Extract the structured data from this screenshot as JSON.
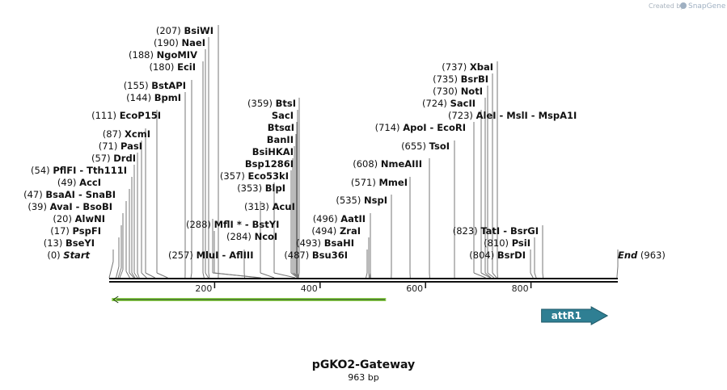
{
  "credit": {
    "prefix": "Created by",
    "brand": "SnapGene"
  },
  "title": "pGKO2-Gateway",
  "length_label": "963 bp",
  "end_position": "(963)",
  "scale": {
    "ticks": [
      {
        "label": "200",
        "bp": 200
      },
      {
        "label": "400",
        "bp": 400
      },
      {
        "label": "600",
        "bp": 600
      },
      {
        "label": "800",
        "bp": 800
      }
    ]
  },
  "sites": [
    {
      "name": "Start",
      "pos": "(0)",
      "bp": 0,
      "italic": true
    },
    {
      "name": "BseYI",
      "pos": "(13)",
      "bp": 13
    },
    {
      "name": "PspFI",
      "pos": "(17)",
      "bp": 17
    },
    {
      "name": "AlwNI",
      "pos": "(20)",
      "bp": 20
    },
    {
      "name": "AvaI  -  BsoBI",
      "pos": "(39)",
      "bp": 39
    },
    {
      "name": "BsaAI  -  SnaBI",
      "pos": "(47)",
      "bp": 47
    },
    {
      "name": "AccI",
      "pos": "(49)",
      "bp": 49
    },
    {
      "name": "PflFI  -  Tth111I",
      "pos": "(54)",
      "bp": 54
    },
    {
      "name": "DrdI",
      "pos": "(57)",
      "bp": 57
    },
    {
      "name": "PasI",
      "pos": "(71)",
      "bp": 71
    },
    {
      "name": "XcmI",
      "pos": "(87)",
      "bp": 87
    },
    {
      "name": "EcoP15I",
      "pos": "(111)",
      "bp": 111
    },
    {
      "name": "BpmI",
      "pos": "(144)",
      "bp": 144
    },
    {
      "name": "BstAPI",
      "pos": "(155)",
      "bp": 155
    },
    {
      "name": "EciI",
      "pos": "(180)",
      "bp": 180
    },
    {
      "name": "NgoMIV",
      "pos": "(188)",
      "bp": 188
    },
    {
      "name": "NaeI",
      "pos": "(190)",
      "bp": 190
    },
    {
      "name": "BsiWI",
      "pos": "(207)",
      "bp": 207
    },
    {
      "name": "MluI  -  AflIII",
      "pos": "(257)",
      "bp": 257
    },
    {
      "name": "MflI *  -  BstYI",
      "pos": "(288)",
      "bp": 288
    },
    {
      "name": "NcoI",
      "pos": "(284)",
      "bp": 284
    },
    {
      "name": "AcuI",
      "pos": "(313)",
      "bp": 313
    },
    {
      "name": "BlpI",
      "pos": "(353)",
      "bp": 353
    },
    {
      "name": "Eco53kI",
      "pos": "(357)",
      "bp": 357
    },
    {
      "name": "Bsp1286I",
      "pos": "",
      "bp": 359
    },
    {
      "name": "BsiHKAI",
      "pos": "",
      "bp": 359
    },
    {
      "name": "BanII",
      "pos": "",
      "bp": 359
    },
    {
      "name": "BtsαI",
      "pos": "",
      "bp": 359
    },
    {
      "name": "SacI",
      "pos": "",
      "bp": 359
    },
    {
      "name": "BtsI",
      "pos": "(359)",
      "bp": 359
    },
    {
      "name": "Bsu36I",
      "pos": "(487)",
      "bp": 487
    },
    {
      "name": "BsaHI",
      "pos": "(493)",
      "bp": 493
    },
    {
      "name": "ZraI",
      "pos": "(494)",
      "bp": 494
    },
    {
      "name": "AatII",
      "pos": "(496)",
      "bp": 496
    },
    {
      "name": "NspI",
      "pos": "(535)",
      "bp": 535
    },
    {
      "name": "MmeI",
      "pos": "(571)",
      "bp": 571
    },
    {
      "name": "NmeAIII",
      "pos": "(608)",
      "bp": 608
    },
    {
      "name": "TsoI",
      "pos": "(655)",
      "bp": 655
    },
    {
      "name": "ApoI  -  EcoRI",
      "pos": "(714)",
      "bp": 714
    },
    {
      "name": "AleI  -  MslI  -  MspA1I",
      "pos": "(723)",
      "bp": 723
    },
    {
      "name": "SacII",
      "pos": "(724)",
      "bp": 724
    },
    {
      "name": "NotI",
      "pos": "(730)",
      "bp": 730
    },
    {
      "name": "BsrBI",
      "pos": "(735)",
      "bp": 735
    },
    {
      "name": "XbaI",
      "pos": "(737)",
      "bp": 737
    },
    {
      "name": "BsrDI",
      "pos": "(804)",
      "bp": 804
    },
    {
      "name": "PsiI",
      "pos": "(810)",
      "bp": 810
    },
    {
      "name": "TatI  -  BsrGI",
      "pos": "(823)",
      "bp": 823
    },
    {
      "name": "End",
      "pos": "(963)",
      "bp": 963,
      "italic": true
    }
  ],
  "features": [
    {
      "name": "",
      "start_bp": 5,
      "end_bp": 525,
      "direction": "reverse",
      "color": "#8fd14f"
    },
    {
      "name": "attR1",
      "start_bp": 820,
      "end_bp": 945,
      "direction": "forward",
      "color": "#2f7f93"
    }
  ],
  "colors": {
    "backbone": "#111111",
    "site_line": "#777777",
    "green_feature": "#8fd14f",
    "attR1": "#2f7f93"
  }
}
